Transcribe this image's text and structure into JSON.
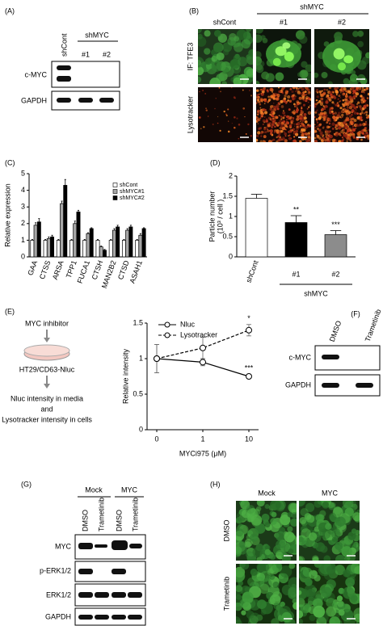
{
  "panels": {
    "A": {
      "label": "(A)",
      "lanes": [
        "shCont",
        "#1",
        "#2"
      ],
      "group": "shMYC",
      "rows": [
        "c-MYC",
        "GAPDH"
      ]
    },
    "B": {
      "label": "(B)",
      "columns": [
        "shCont",
        "#1",
        "#2"
      ],
      "group": "shMYC",
      "rows": [
        "IF: TFE3",
        "Lysotracker"
      ]
    },
    "E": {
      "steps": [
        "MYC inhibitor",
        "HT29/CD63-Nluc",
        "Nluc intensity in media",
        "and",
        "Lysotracker intensity in cells"
      ]
    },
    "F": {
      "label": "(F)",
      "lanes": [
        "DMSO",
        "Trametinib"
      ],
      "rows": [
        "c-MYC",
        "GAPDH"
      ]
    },
    "G": {
      "label": "(G)",
      "groups": [
        "Mock",
        "MYC"
      ],
      "lanes": [
        "DMSO",
        "Trametinib",
        "DMSO",
        "Trametinib"
      ],
      "rows": [
        "MYC",
        "p-ERK1/2",
        "ERK1/2",
        "GAPDH"
      ]
    },
    "H": {
      "label": "(H)",
      "columns": [
        "Mock",
        "MYC"
      ],
      "rows": [
        "DMSO",
        "Trametinib"
      ]
    }
  },
  "chart_data": [
    {
      "type": "bar",
      "label": "(C)",
      "y_label": "Relative expression",
      "categories": [
        "GAA",
        "CTSS",
        "ARSA",
        "TPP1",
        "FUCA1",
        "CTSH",
        "MAN2B2",
        "CTSD",
        "ASAH1"
      ],
      "series": [
        {
          "name": "shCont",
          "color": "#ffffff",
          "values": [
            1,
            1,
            1,
            1,
            1,
            1,
            1,
            1,
            1
          ],
          "errors": [
            0.05,
            0.05,
            0.05,
            0.05,
            0.05,
            0.05,
            0.05,
            0.05,
            0.05
          ]
        },
        {
          "name": "shMYC#1",
          "color": "#a6a6a6",
          "values": [
            1.9,
            1.1,
            3.2,
            2.0,
            1.4,
            0.6,
            1.6,
            1.6,
            1.3
          ],
          "errors": [
            0.15,
            0.1,
            0.15,
            0.15,
            0.05,
            0.05,
            0.1,
            0.1,
            0.1
          ]
        },
        {
          "name": "shMYC#2",
          "color": "#000000",
          "values": [
            2.1,
            1.2,
            4.3,
            2.7,
            1.7,
            0.4,
            1.8,
            1.8,
            1.7
          ],
          "errors": [
            0.2,
            0.1,
            0.35,
            0.1,
            0.05,
            0.05,
            0.1,
            0.1,
            0.05
          ]
        }
      ],
      "ylim": [
        0,
        5
      ],
      "yticks": [
        0,
        1,
        2,
        3,
        4,
        5
      ],
      "legend": "upper right"
    },
    {
      "type": "bar",
      "label": "(D)",
      "y_label": [
        "Particle number",
        "(10³ / cell )"
      ],
      "categories": [
        "shCont",
        "#1",
        "#2"
      ],
      "group_label": "shMYC",
      "values": [
        1.45,
        0.85,
        0.55
      ],
      "errors": [
        0.1,
        0.17,
        0.1
      ],
      "colors": [
        "#ffffff",
        "#000000",
        "#8c8c8c"
      ],
      "significance": [
        null,
        "**",
        "***"
      ],
      "ylim": [
        0,
        2
      ],
      "yticks": [
        0,
        0.5,
        1,
        1.5,
        2
      ]
    },
    {
      "type": "line",
      "label": "(E)",
      "x_label": "MYCi975 (μM)",
      "y_label": "Relative intensity",
      "categories": [
        "0",
        "1",
        "10"
      ],
      "series": [
        {
          "name": "Nluc",
          "color": "#000000",
          "line_style": "solid",
          "values": [
            1,
            0.95,
            0.75
          ],
          "errors": [
            0.2,
            0.05,
            0.03
          ],
          "significance": [
            null,
            null,
            "***"
          ]
        },
        {
          "name": "Lysotracker",
          "color": "#000000",
          "line_style": "dashed",
          "values": [
            1,
            1.15,
            1.4
          ],
          "errors": [
            0.2,
            0.15,
            0.08
          ],
          "significance": [
            null,
            null,
            "*"
          ]
        }
      ],
      "ylim": [
        0,
        1.5
      ],
      "yticks": [
        0,
        0.5,
        1,
        1.5
      ],
      "legend": "upper left"
    }
  ]
}
